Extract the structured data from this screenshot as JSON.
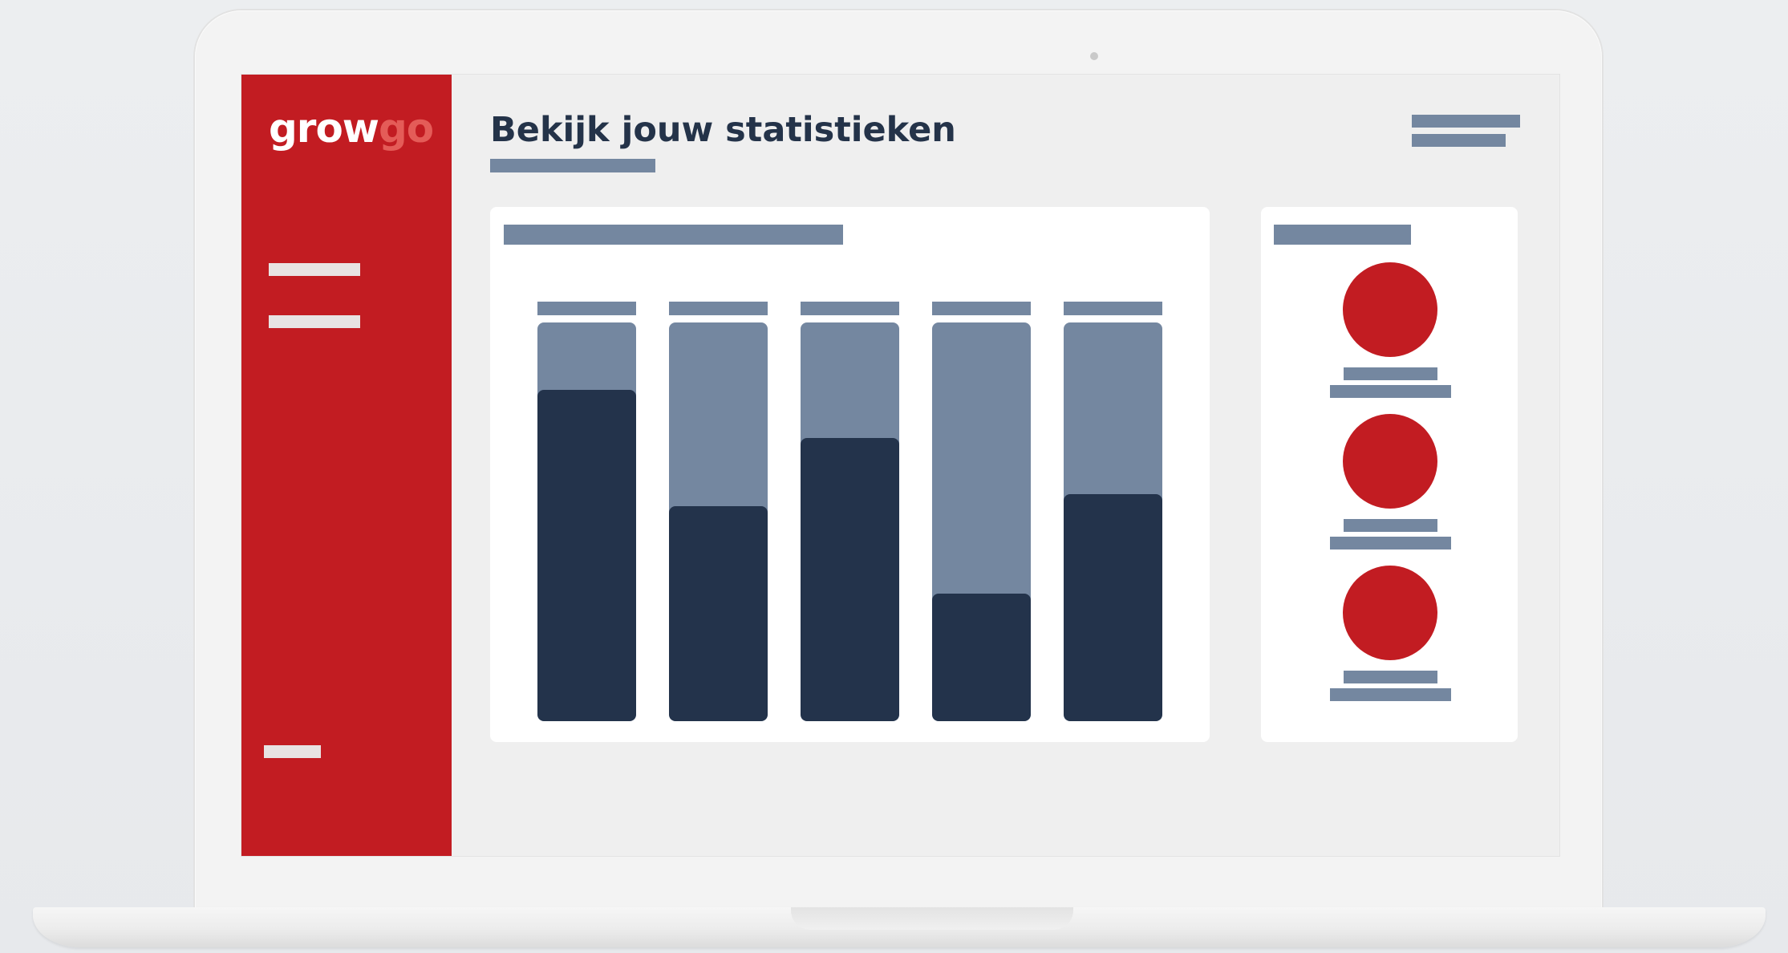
{
  "app": {
    "logo_part1": "grow",
    "logo_part2": "go",
    "brand_color": "#c21c22",
    "dark_color": "#23334b",
    "muted_color": "#7487a0"
  },
  "header": {
    "title": "Bekijk jouw statistieken"
  },
  "chart_data": {
    "type": "bar",
    "title": "",
    "xlabel": "",
    "ylabel": "",
    "categories": [
      "",
      "",
      "",
      "",
      ""
    ],
    "series": [
      {
        "values": [
          83,
          54,
          71,
          32,
          57
        ]
      }
    ],
    "ylim": [
      0,
      100
    ],
    "grid": false
  },
  "stats_panel": {
    "items": [
      {
        "icon": "red-circle-icon"
      },
      {
        "icon": "red-circle-icon"
      },
      {
        "icon": "red-circle-icon"
      }
    ]
  }
}
